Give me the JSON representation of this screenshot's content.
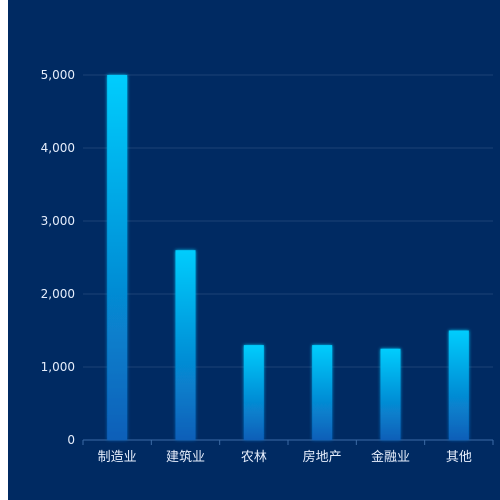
{
  "chart_data": {
    "type": "bar",
    "title": "",
    "xlabel": "",
    "ylabel": "",
    "categories": [
      "制造业",
      "建筑业",
      "农林",
      "房地产",
      "金融业",
      "其他"
    ],
    "values": [
      5000,
      2600,
      1300,
      1300,
      1250,
      1500
    ],
    "ylim": [
      0,
      5000
    ],
    "yticks": [
      0,
      1000,
      2000,
      3000,
      4000,
      5000
    ],
    "ytick_labels": [
      "0",
      "1,000",
      "2,000",
      "3,000",
      "4,000",
      "5,000"
    ],
    "grid": true,
    "legend": "none"
  },
  "colors": {
    "background": "#002a62",
    "bar_top": "#00cdfd",
    "bar_bottom": "#0a5fb8",
    "grid": "#1d4276",
    "axis": "#3c6ba5",
    "text": "#e6eefc"
  }
}
